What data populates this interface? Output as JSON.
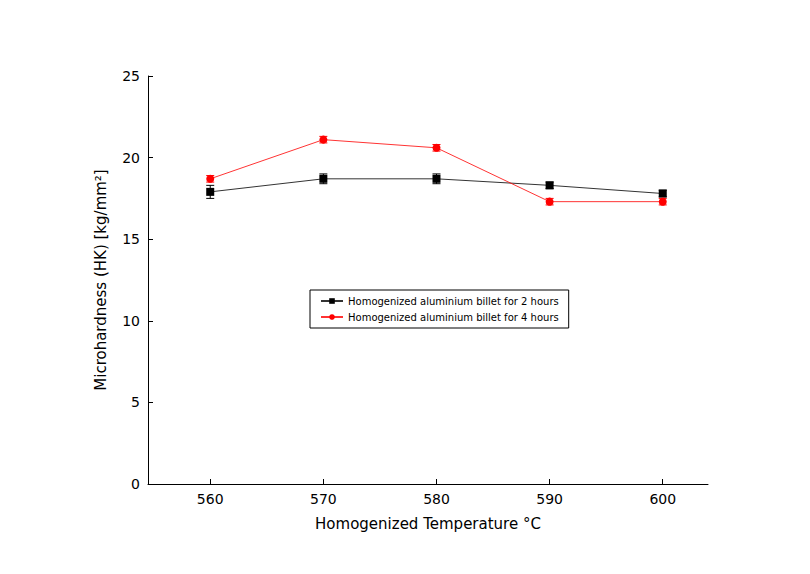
{
  "chart_data": {
    "type": "line",
    "x_label": "Homogenized Temperature °C",
    "y_label": "Microhardness (HK) [kg/mm²]",
    "x": [
      560,
      570,
      580,
      590,
      600
    ],
    "series": [
      {
        "name": "Homogenized aluminium billet for 2 hours",
        "color": "#000000",
        "marker": "square",
        "values": [
          17.9,
          18.7,
          18.7,
          18.3,
          17.8
        ],
        "errors": [
          0.4,
          0.3,
          0.3,
          0.2,
          0.2
        ]
      },
      {
        "name": "Homogenized aluminium billet for 4 hours",
        "color": "#ff0000",
        "marker": "circle",
        "values": [
          18.7,
          21.1,
          20.6,
          17.3,
          17.3
        ],
        "errors": [
          0.2,
          0.2,
          0.2,
          0.2,
          0.2
        ]
      }
    ],
    "xlim": [
      554.5,
      604
    ],
    "xticks": [
      560,
      570,
      580,
      590,
      600
    ],
    "ylim": [
      0,
      25
    ],
    "yticks": [
      0,
      5,
      10,
      15,
      20,
      25
    ],
    "grid": false,
    "legend": "center"
  }
}
